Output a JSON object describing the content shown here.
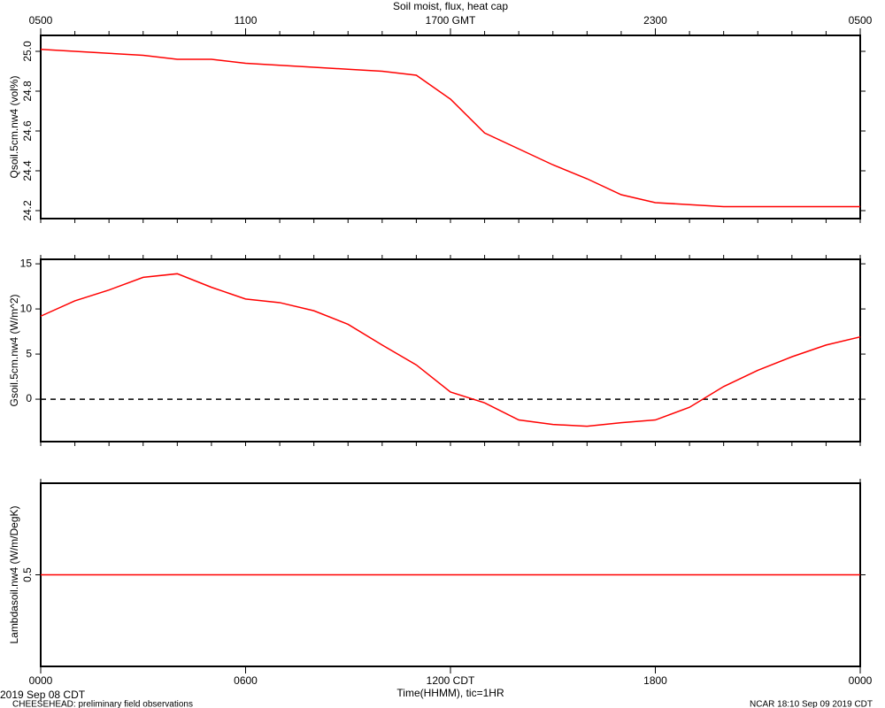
{
  "title": "Soil moist, flux, heat cap",
  "xlabel": "Time(HHMM), tic=1HR",
  "date": "2019 Sep 08 CDT",
  "project": "CHEESEHEAD: preliminary field observations",
  "stamp": "NCAR 18:10 Sep 09 2019 CDT",
  "chart_data": [
    {
      "type": "line",
      "ylabel": "Qsoil.5cm.nw4 (vol%)",
      "vertical_yticks": true,
      "xlim": [
        0,
        24
      ],
      "top_xticks": [
        {
          "value": 0,
          "label": "0500"
        },
        {
          "value": 6,
          "label": "1100"
        },
        {
          "value": 12,
          "label": "1700 GMT"
        },
        {
          "value": 18,
          "label": "2300"
        },
        {
          "value": 24,
          "label": "0500"
        }
      ],
      "ylim": [
        24.16,
        25.08
      ],
      "yticks": [
        {
          "value": 24.2,
          "label": "24.2"
        },
        {
          "value": 24.4,
          "label": "24.4"
        },
        {
          "value": 24.6,
          "label": "24.6"
        },
        {
          "value": 24.8,
          "label": "24.8"
        },
        {
          "value": 25.0,
          "label": "25.0"
        }
      ],
      "x": [
        0,
        1,
        2,
        3,
        4,
        5,
        6,
        7,
        8,
        9,
        10,
        11,
        12,
        13,
        14,
        15,
        16,
        17,
        18,
        19,
        20,
        21,
        22,
        23,
        24
      ],
      "series": [
        {
          "color": "#ff0000",
          "values": [
            25.01,
            25.0,
            24.99,
            24.98,
            24.96,
            24.96,
            24.94,
            24.93,
            24.92,
            24.91,
            24.9,
            24.88,
            24.76,
            24.59,
            24.51,
            24.43,
            24.36,
            24.28,
            24.24,
            24.23,
            24.22,
            24.22,
            24.22,
            24.22,
            24.22
          ]
        }
      ]
    },
    {
      "type": "line",
      "ylabel": "Gsoil.5cm.nw4 (W/m^2)",
      "vertical_yticks": false,
      "xlim": [
        0,
        24
      ],
      "ylim": [
        -4.7,
        15.5
      ],
      "yticks": [
        0,
        5,
        10,
        15
      ],
      "refline": 0,
      "x": [
        0,
        1,
        2,
        3,
        4,
        5,
        6,
        7,
        8,
        9,
        10,
        11,
        12,
        13,
        14,
        15,
        16,
        17,
        18,
        19,
        20,
        21,
        22,
        23,
        24
      ],
      "series": [
        {
          "color": "#ff0000",
          "values": [
            9.2,
            10.9,
            12.1,
            13.5,
            13.9,
            12.4,
            11.1,
            10.7,
            9.8,
            8.3,
            6.0,
            3.8,
            0.8,
            -0.4,
            -2.3,
            -2.8,
            -3.0,
            -2.6,
            -2.3,
            -0.9,
            1.4,
            3.2,
            4.7,
            6.0,
            6.9
          ]
        }
      ]
    },
    {
      "type": "line",
      "ylabel": "Lambdasoil.nw4 (W/m/DegK)",
      "vertical_yticks": true,
      "xlim": [
        0,
        24
      ],
      "xticks": [
        {
          "value": 0,
          "label": "0000"
        },
        {
          "value": 6,
          "label": "0600"
        },
        {
          "value": 12,
          "label": "1200 CDT"
        },
        {
          "value": 18,
          "label": "1800"
        },
        {
          "value": 24,
          "label": "0000"
        }
      ],
      "ylim": [
        0.3,
        0.7
      ],
      "yticks": [
        0.5
      ],
      "x": [
        0,
        24
      ],
      "series": [
        {
          "color": "#ff0000",
          "values": [
            0.5,
            0.5
          ]
        }
      ]
    }
  ]
}
